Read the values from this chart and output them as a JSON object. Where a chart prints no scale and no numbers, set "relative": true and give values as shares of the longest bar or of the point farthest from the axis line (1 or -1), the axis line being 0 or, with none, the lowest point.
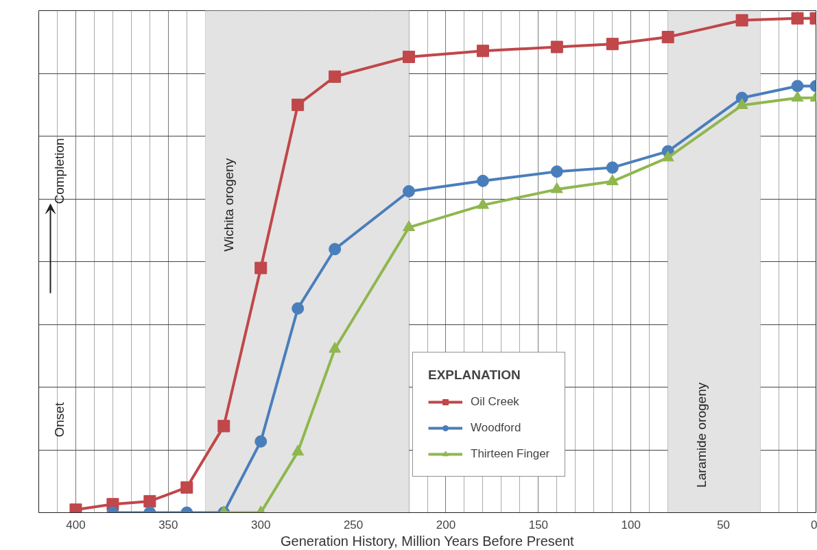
{
  "chart_data": {
    "type": "line",
    "relative": true,
    "xlabel": "Generation History, Million Years Before Present",
    "legend_title": "EXPLANATION",
    "legend": "bottom",
    "grid": true,
    "xlim": [
      420,
      0
    ],
    "xticks": [
      400,
      350,
      300,
      250,
      200,
      150,
      100,
      50,
      0
    ],
    "x": [
      400,
      380,
      360,
      340,
      320,
      300,
      280,
      260,
      220,
      180,
      140,
      110,
      80,
      40,
      10,
      0
    ],
    "series": [
      {
        "name": "Oil Creek",
        "color": "#c0474a",
        "marker": "square",
        "values": [
          0.006,
          0.017,
          0.023,
          0.051,
          0.175,
          0.495,
          0.825,
          0.882,
          0.922,
          0.934,
          0.942,
          0.948,
          0.962,
          0.996,
          1,
          1
        ]
      },
      {
        "name": "Woodford",
        "color": "#4a7ebb",
        "marker": "circle",
        "x": [
          380,
          360,
          340,
          320,
          300,
          280,
          260,
          220,
          180,
          140,
          110,
          80,
          40,
          10,
          0
        ],
        "values": [
          0,
          0,
          0,
          0,
          0.144,
          0.413,
          0.533,
          0.65,
          0.671,
          0.69,
          0.698,
          0.731,
          0.839,
          0.863,
          0.863
        ]
      },
      {
        "name": "Thirteen Finger",
        "color": "#8fb74e",
        "marker": "triangle",
        "x": [
          320,
          300,
          280,
          260,
          220,
          180,
          140,
          110,
          80,
          40,
          10,
          0
        ],
        "values": [
          0,
          0,
          0.123,
          0.331,
          0.577,
          0.622,
          0.654,
          0.67,
          0.718,
          0.824,
          0.839,
          0.839
        ]
      }
    ],
    "bands": [
      {
        "axis": "x",
        "from": 330,
        "to": 220,
        "label": "Wichita orogeny",
        "color": "#e3e3e3"
      },
      {
        "axis": "x",
        "from": 80,
        "to": 30,
        "label": "Laramide orogeny",
        "color": "#e3e3e3"
      }
    ],
    "annotations": [
      "Onset",
      "Completion"
    ]
  }
}
